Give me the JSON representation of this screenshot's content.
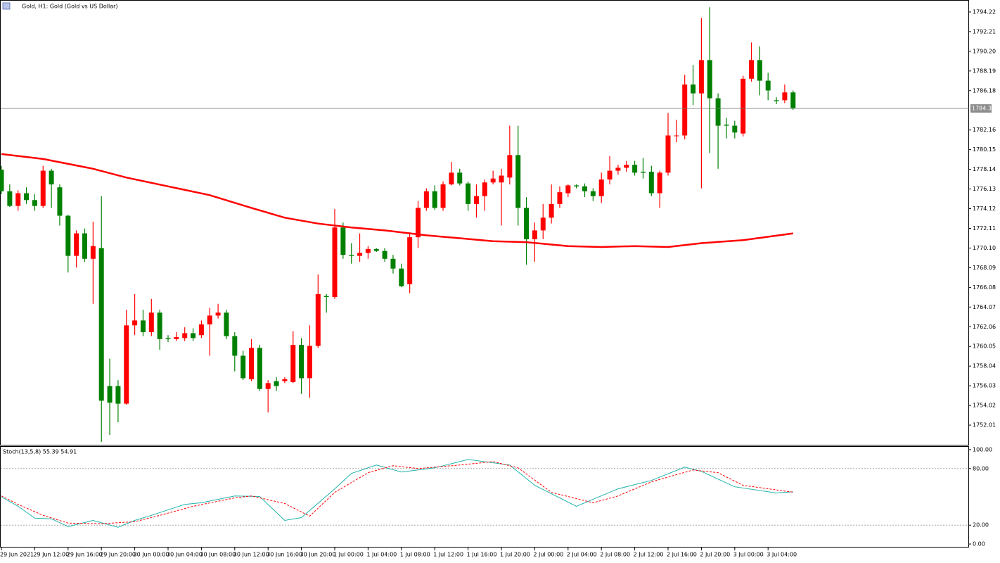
{
  "chart_data": [
    {
      "type": "candlestick",
      "title": "Gold, H1:  Gold (Gold vs US Dollar)",
      "categories": [
        "29 Jun 2021",
        null,
        null,
        null,
        "29 Jun 12:00",
        null,
        null,
        null,
        "29 Jun 16:00",
        null,
        null,
        null,
        "29 Jun 20:00",
        null,
        null,
        null,
        "30 Jun 00:00",
        null,
        null,
        null,
        "30 Jun 04:00",
        null,
        null,
        null,
        "30 Jun 08:00",
        null,
        null,
        null,
        "30 Jun 12:00",
        null,
        null,
        null,
        "30 Jun 16:00",
        null,
        null,
        null,
        "30 Jun 20:00",
        null,
        null,
        null,
        "1 Jul 00:00",
        null,
        null,
        null,
        "1 Jul 04:00",
        null,
        null,
        null,
        "1 Jul 08:00",
        null,
        null,
        null,
        "1 Jul 12:00",
        null,
        null,
        null,
        "1 Jul 16:00",
        null,
        null,
        null,
        "1 Jul 20:00",
        null,
        null,
        null,
        "2 Jul 00:00",
        null,
        null,
        null,
        "2 Jul 04:00",
        null,
        null,
        null,
        "2 Jul 08:00",
        null,
        null,
        null,
        "2 Jul 12:00",
        null,
        null,
        null,
        "2 Jul 16:00",
        null,
        null,
        null,
        "2 Jul 20:00",
        null,
        null,
        null,
        "3 Jul 00:00",
        null,
        null,
        null,
        "3 Jul 04:00",
        null,
        null,
        null
      ],
      "open": [
        1778.1,
        1775.9,
        1774.4,
        1775.7,
        1775.0,
        1774.4,
        1778.0,
        1776.3,
        1773.4,
        1769.3,
        1771.6,
        1769.0,
        1770.1,
        1756.0,
        1756.0,
        1754.2,
        1762.2,
        1762.7,
        1761.5,
        1763.5,
        1760.9,
        1760.8,
        1760.9,
        1761.4,
        1761.2,
        1762.3,
        1763.2,
        1763.5,
        1761.1,
        1759.1,
        1756.7,
        1759.9,
        1755.7,
        1756.5,
        1756.5,
        1756.4,
        1760.2,
        1756.8,
        1760.1,
        1765.2,
        1765.1,
        1772.2,
        1769.4,
        1769.3,
        1769.6,
        1770.0,
        1769.8,
        1769.0,
        1768.0,
        1766.4,
        1771.2,
        1774.2,
        1775.9,
        1774.2,
        1776.6,
        1777.8,
        1776.7,
        1774.6,
        1775.4,
        1776.8,
        1776.8,
        1777.3,
        1779.6,
        1774.2,
        1771.0,
        1771.9,
        1773.2,
        1774.6,
        1775.7,
        1776.5,
        1776.4,
        1775.9,
        1775.4,
        1777.1,
        1778.0,
        1778.3,
        1778.6,
        1777.9,
        1777.9,
        1775.7,
        1777.8,
        1781.6,
        1781.6,
        1786.8,
        1785.9,
        1789.3,
        1785.4,
        1782.7,
        1782.6,
        1781.8,
        1787.4,
        1789.3,
        1787.2,
        1785.2,
        1785.2,
        1786.0
      ],
      "high": [
        1778.5,
        1776.6,
        1776.0,
        1776.3,
        1775.6,
        1778.5,
        1778.2,
        1776.6,
        1773.5,
        1771.9,
        1772.1,
        1772.8,
        1775.4,
        1758.8,
        1756.6,
        1763.8,
        1765.4,
        1763.8,
        1764.9,
        1763.8,
        1761.2,
        1761.5,
        1762.0,
        1761.9,
        1762.7,
        1764.0,
        1764.4,
        1763.8,
        1761.5,
        1759.6,
        1760.8,
        1760.2,
        1756.6,
        1756.9,
        1756.9,
        1761.6,
        1760.9,
        1762.2,
        1767.4,
        1765.4,
        1774.1,
        1772.7,
        1770.6,
        1771.6,
        1770.3,
        1770.1,
        1770.1,
        1769.4,
        1768.5,
        1771.7,
        1774.9,
        1776.2,
        1776.5,
        1776.9,
        1778.9,
        1778.2,
        1776.9,
        1776.6,
        1777.1,
        1778.0,
        1778.2,
        1782.6,
        1782.6,
        1775.3,
        1772.7,
        1774.6,
        1776.6,
        1776.4,
        1776.6,
        1776.6,
        1776.7,
        1776.2,
        1777.8,
        1779.5,
        1778.6,
        1779.0,
        1779.0,
        1779.3,
        1778.5,
        1778.0,
        1783.9,
        1783.2,
        1787.8,
        1788.8,
        1793.6,
        1794.7,
        1785.9,
        1783.4,
        1783.1,
        1787.7,
        1791.1,
        1790.7,
        1788.0,
        1785.5,
        1786.8,
        1786.2
      ],
      "low": [
        1775.6,
        1774.3,
        1773.9,
        1774.6,
        1773.9,
        1774.2,
        1774.2,
        1772.4,
        1767.6,
        1768.1,
        1768.7,
        1764.4,
        1750.3,
        1751.0,
        1752.3,
        1754.1,
        1761.2,
        1761.1,
        1761.1,
        1759.7,
        1760.5,
        1760.6,
        1760.6,
        1760.6,
        1760.9,
        1759.1,
        1762.9,
        1760.8,
        1757.5,
        1756.6,
        1756.5,
        1755.5,
        1753.3,
        1755.5,
        1756.3,
        1756.3,
        1755.2,
        1754.8,
        1759.9,
        1763.5,
        1764.9,
        1769.0,
        1768.5,
        1768.7,
        1769.0,
        1769.7,
        1768.7,
        1767.5,
        1766.1,
        1765.5,
        1770.1,
        1773.9,
        1774.0,
        1773.9,
        1776.5,
        1776.5,
        1773.9,
        1773.2,
        1773.9,
        1776.6,
        1772.4,
        1776.6,
        1772.4,
        1768.4,
        1768.7,
        1771.0,
        1772.6,
        1774.2,
        1775.3,
        1776.2,
        1775.3,
        1774.9,
        1774.7,
        1776.6,
        1777.6,
        1777.9,
        1777.5,
        1777.2,
        1775.4,
        1774.2,
        1777.5,
        1780.9,
        1781.2,
        1784.7,
        1776.2,
        1779.8,
        1778.2,
        1781.3,
        1781.3,
        1781.5,
        1787.1,
        1785.7,
        1785.2,
        1784.8,
        1784.9,
        1784.2
      ],
      "close": [
        1775.9,
        1774.4,
        1775.7,
        1775.0,
        1774.4,
        1778.0,
        1776.6,
        1773.4,
        1769.3,
        1771.6,
        1769.0,
        1770.3,
        1754.5,
        1754.3,
        1754.2,
        1762.2,
        1762.7,
        1761.5,
        1763.5,
        1760.8,
        1760.8,
        1761.0,
        1761.4,
        1760.9,
        1762.3,
        1763.2,
        1763.5,
        1761.1,
        1759.1,
        1756.8,
        1759.9,
        1755.7,
        1756.3,
        1756.0,
        1756.7,
        1760.2,
        1756.8,
        1760.1,
        1765.4,
        1765.1,
        1772.2,
        1769.4,
        1769.3,
        1769.6,
        1770.0,
        1769.8,
        1769.0,
        1768.0,
        1766.2,
        1771.2,
        1774.2,
        1775.9,
        1774.2,
        1776.6,
        1777.8,
        1776.7,
        1774.6,
        1775.4,
        1776.8,
        1777.2,
        1777.5,
        1779.6,
        1774.2,
        1771.0,
        1771.9,
        1773.2,
        1774.6,
        1775.8,
        1776.5,
        1776.4,
        1775.9,
        1775.4,
        1777.1,
        1778.0,
        1778.3,
        1778.6,
        1777.8,
        1777.8,
        1775.7,
        1777.8,
        1781.6,
        1781.6,
        1786.8,
        1785.9,
        1789.3,
        1785.4,
        1782.6,
        1782.6,
        1781.9,
        1787.4,
        1789.3,
        1787.2,
        1786.2,
        1785.1,
        1786.0,
        1784.4
      ],
      "up_color": "#ff0000",
      "down_color": "#008000",
      "ma": {
        "color": "#ff0000",
        "x": [
          0,
          5,
          11,
          15,
          20,
          25,
          30,
          34,
          38,
          42,
          46,
          51,
          55,
          59,
          63,
          68,
          72,
          76,
          80,
          84,
          89,
          95
        ],
        "values": [
          1779.7,
          1779.2,
          1778.2,
          1777.3,
          1776.4,
          1775.5,
          1774.2,
          1773.2,
          1772.6,
          1772.2,
          1771.9,
          1771.4,
          1771.1,
          1770.8,
          1770.7,
          1770.3,
          1770.2,
          1770.3,
          1770.2,
          1770.6,
          1770.9,
          1771.6
        ]
      },
      "last_price": 1784.36,
      "ylim": [
        1750.0,
        1795.44
      ],
      "yticks": [
        1794.22,
        1792.21,
        {
          "value": 1790.2,
          "label": "1790.20"
        },
        1788.19,
        1786.18,
        1782.16,
        1780.15,
        1778.14,
        1776.13,
        1774.12,
        1772.11,
        {
          "value": 1770.1,
          "label": "1770.10"
        },
        1768.09,
        1766.08,
        1764.07,
        1762.06,
        1760.05,
        1758.04,
        1756.03,
        1754.02,
        1752.01
      ]
    },
    {
      "type": "line",
      "title": "Stoch(13,5,8) 55.39 54.91",
      "series": [
        {
          "color": "#20b2aa",
          "dashed": false,
          "x": [
            0,
            2,
            4,
            6,
            8,
            11,
            14,
            16,
            18,
            22,
            24,
            28,
            31,
            34,
            36,
            40,
            42,
            45,
            48,
            52,
            56,
            61,
            64,
            69,
            74,
            78,
            82,
            84,
            88,
            93,
            95
          ],
          "values": [
            50,
            40,
            27.4,
            26.7,
            18.5,
            25,
            17.8,
            25,
            30.4,
            42,
            43.7,
            51,
            50.4,
            25,
            28,
            58.5,
            74.8,
            83.7,
            76.3,
            80.7,
            89.6,
            83.7,
            62.2,
            40,
            58.5,
            67.4,
            81.5,
            77,
            60.7,
            54.1,
            55.39
          ]
        },
        {
          "color": "#ff0000",
          "dashed": true,
          "x": [
            0,
            2,
            5,
            8,
            12,
            16,
            19,
            23,
            28,
            30,
            34,
            37,
            40,
            44,
            47,
            50,
            55,
            59,
            62,
            66,
            71,
            74,
            78,
            83,
            86,
            89,
            95
          ],
          "values": [
            51,
            42,
            30.4,
            22.2,
            21.5,
            23.7,
            30.4,
            40,
            48.9,
            51,
            43,
            29.6,
            54.8,
            75.6,
            83,
            80,
            83.7,
            87.4,
            80.7,
            54.8,
            43.7,
            51,
            65.9,
            78.5,
            75.6,
            62.2,
            54.91
          ]
        }
      ],
      "ylim": [
        -3.7,
        103.7
      ],
      "yticks": [
        {
          "value": 100,
          "label": "100.00"
        },
        {
          "value": 80,
          "label": "80.00",
          "grid": true
        },
        {
          "value": 20,
          "label": "20.00",
          "grid": true
        },
        {
          "value": 0,
          "label": "0.00"
        }
      ]
    }
  ]
}
